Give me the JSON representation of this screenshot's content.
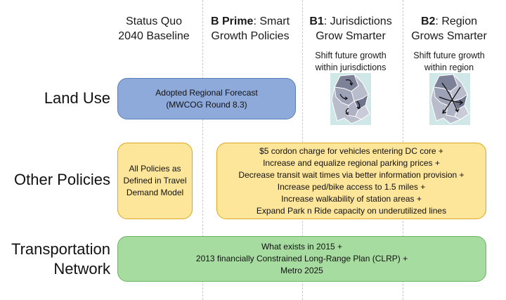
{
  "colors": {
    "land_use_fill": "#8eaadb",
    "land_use_border": "#5b7fb9",
    "policy_fill": "#fde59a",
    "policy_border": "#d9a820",
    "network_fill": "#a6dca0",
    "network_border": "#6cb462",
    "map_bg": "#cfe7e6",
    "map_region": "#8e93a8"
  },
  "columns": [
    {
      "bold": "",
      "rest": "Status Quo",
      "line2": "2040 Baseline",
      "sub1": "",
      "sub2": ""
    },
    {
      "bold": "B Prime",
      "rest": ": Smart",
      "line2": "Growth Policies",
      "sub1": "",
      "sub2": ""
    },
    {
      "bold": "B1",
      "rest": ": Jurisdictions",
      "line2": "Grow Smarter",
      "sub1": "Shift future growth",
      "sub2": "within jurisdictions"
    },
    {
      "bold": "B2",
      "rest": ": Region",
      "line2": "Grows Smarter",
      "sub1": "Shift future growth",
      "sub2": "within region"
    }
  ],
  "rows": {
    "land_use": "Land Use",
    "other_policies": "Other Policies",
    "transportation_1": "Transportation",
    "transportation_2": "Network"
  },
  "land_use_box": {
    "lines": [
      "Adopted Regional Forecast",
      "(MWCOG Round 8.3)"
    ]
  },
  "status_quo_policy_box": {
    "lines": [
      "All Policies as",
      "Defined in Travel",
      "Demand Model"
    ]
  },
  "smart_policy_box": {
    "lines": [
      "$5 cordon charge for vehicles entering DC core +",
      "Increase and equalize regional parking prices +",
      "Decrease transit wait times via better information provision +",
      "Increase ped/bike access to 1.5 miles +",
      "Increase walkability of station areas +",
      "Expand Park n Ride capacity on underutilized lines"
    ]
  },
  "network_box": {
    "lines": [
      "What exists in 2015 +",
      "2013 financially Constrained Long-Range Plan (CLRP) +",
      "Metro 2025"
    ]
  },
  "maps": [
    {
      "icon": "jurisdiction-growth-map-icon"
    },
    {
      "icon": "region-growth-map-icon"
    }
  ]
}
